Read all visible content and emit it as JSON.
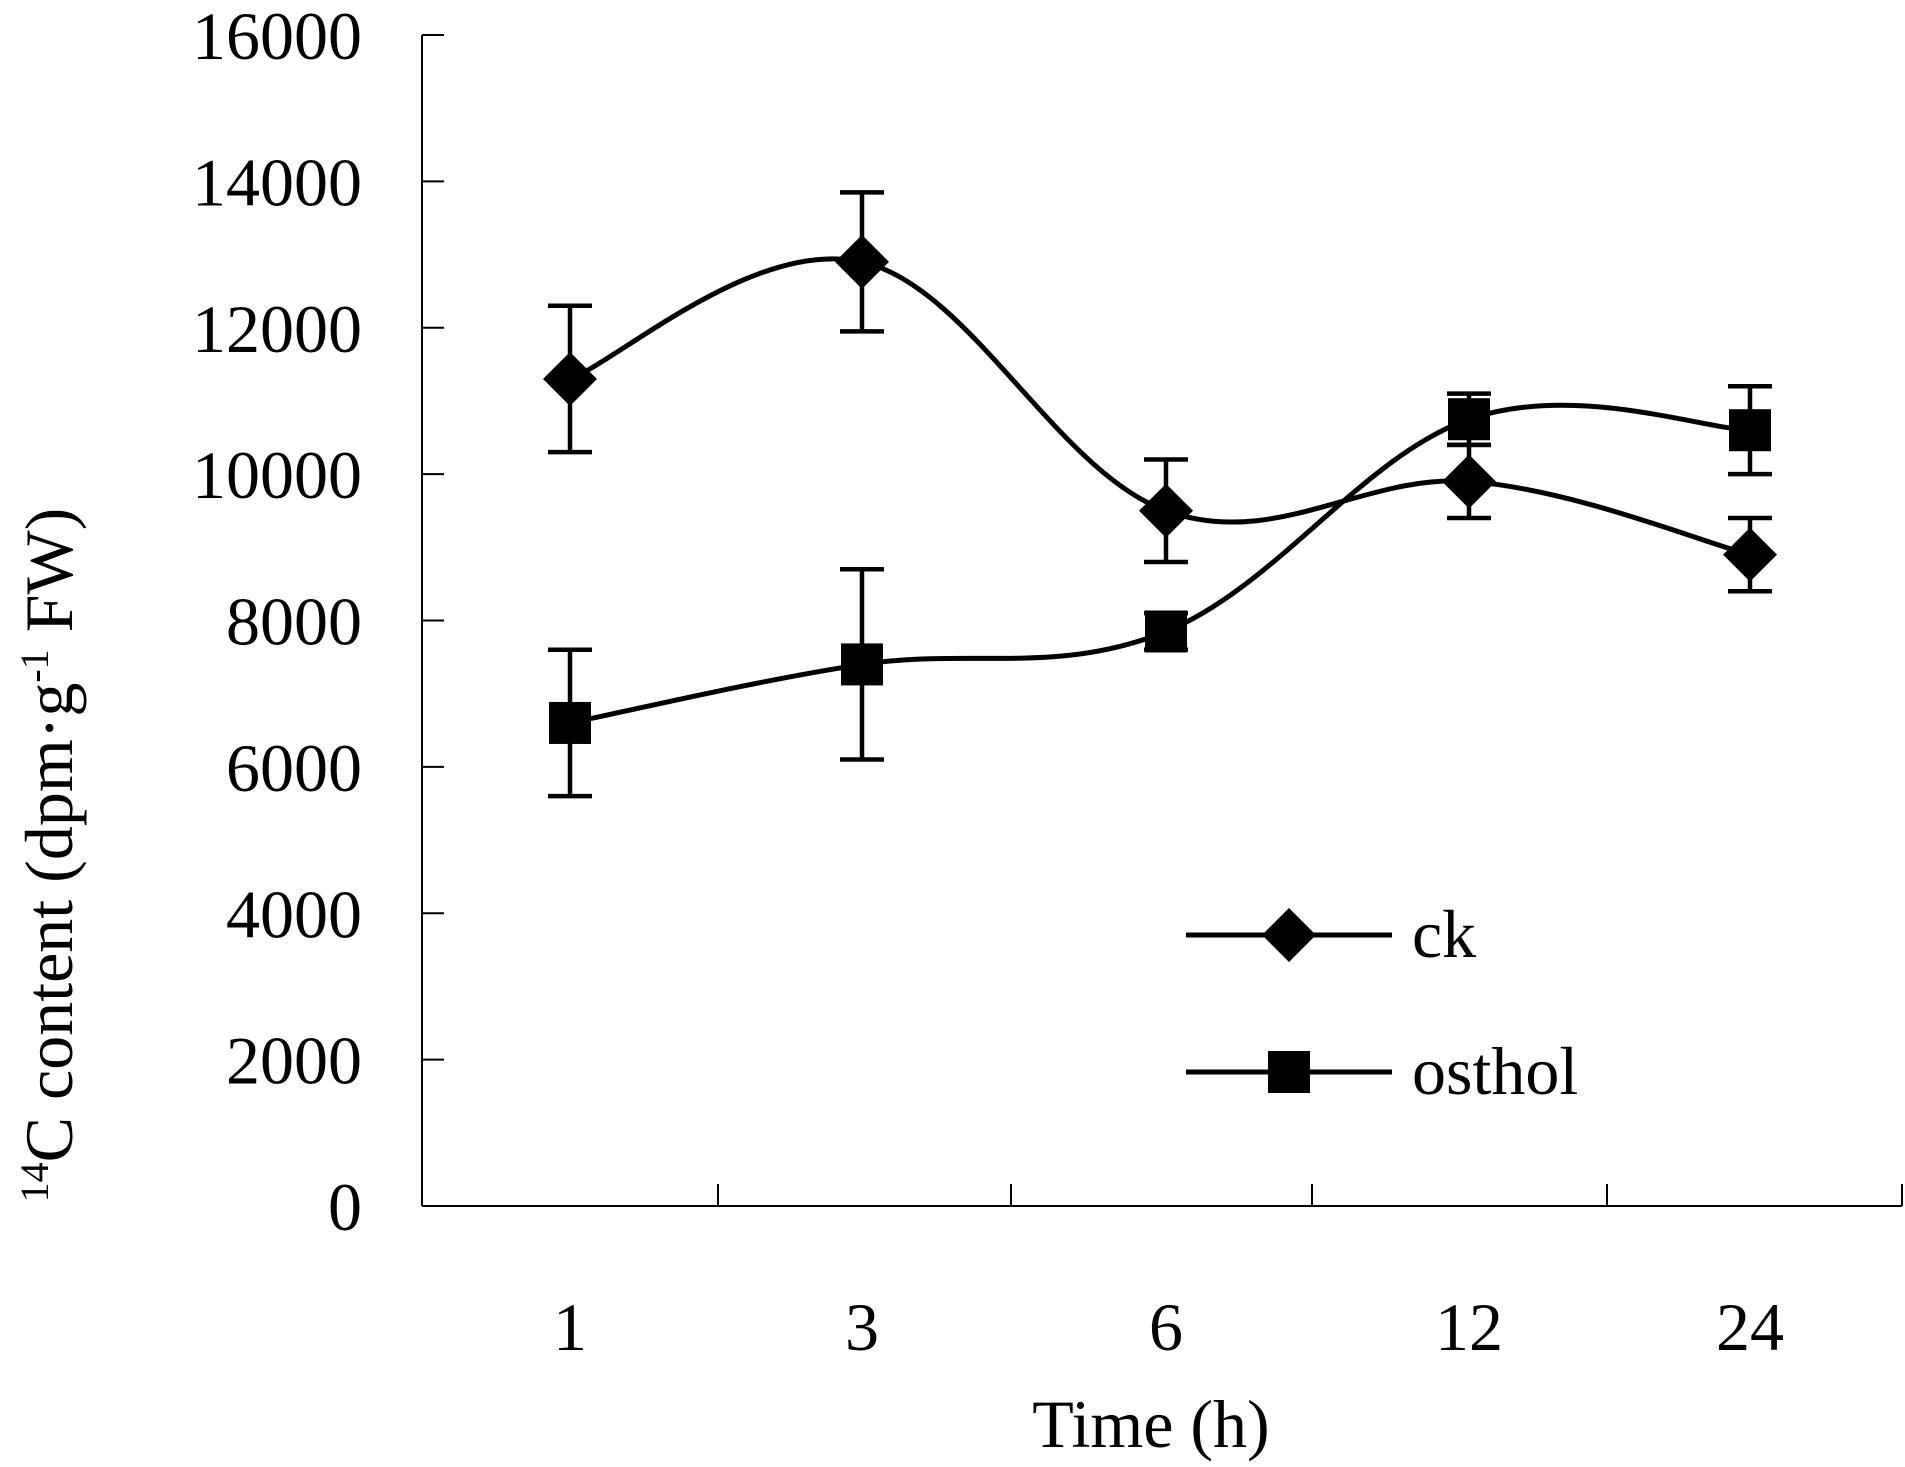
{
  "chart_data": {
    "type": "line",
    "categories": [
      "1",
      "3",
      "6",
      "12",
      "24"
    ],
    "xlabel": "Time (h)",
    "ylabel_prefix_superscript": "14",
    "ylabel_main": "C content (dpm·g",
    "ylabel_superscript": "-1",
    "ylabel_suffix": " FW)",
    "ylim": [
      0,
      16000
    ],
    "yticks": [
      0,
      2000,
      4000,
      6000,
      8000,
      10000,
      12000,
      14000,
      16000
    ],
    "ytick_labels": [
      "0",
      "2000",
      "4000",
      "6000",
      "8000",
      "10000",
      "12000",
      "14000",
      "16000"
    ],
    "grid": false,
    "legend_position": "center-right",
    "series": [
      {
        "name": "ck",
        "marker": "diamond",
        "values": [
          11300,
          12900,
          9500,
          9900,
          8900
        ],
        "errors": [
          1000,
          950,
          700,
          500,
          500
        ]
      },
      {
        "name": "osthol",
        "marker": "square",
        "values": [
          6600,
          7400,
          7850,
          10750,
          10600
        ],
        "errors": [
          1000,
          1300,
          250,
          350,
          600
        ]
      }
    ]
  }
}
